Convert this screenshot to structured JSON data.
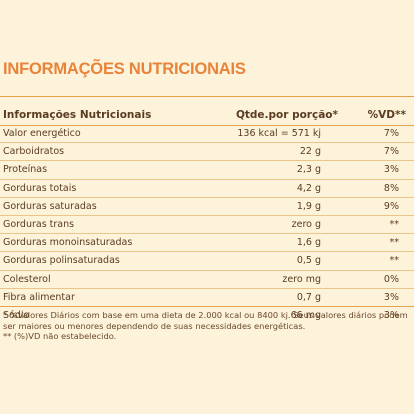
{
  "title": "INFORMAÇÕES NUTRICIONAIS",
  "table": {
    "headers": {
      "name": "Informações Nutricionais",
      "qty": "Qtde.por porção*",
      "vd": "%VD**"
    },
    "rows": [
      {
        "name": "Valor energético",
        "qty": "136 kcal = 571 kj",
        "vd": "7%"
      },
      {
        "name": "Carboidratos",
        "qty": "22 g",
        "vd": "7%"
      },
      {
        "name": "Proteínas",
        "qty": "2,3 g",
        "vd": "3%"
      },
      {
        "name": "Gorduras totais",
        "qty": "4,2 g",
        "vd": "8%"
      },
      {
        "name": "Gorduras saturadas",
        "qty": "1,9 g",
        "vd": "9%"
      },
      {
        "name": "Gorduras trans",
        "qty": "zero g",
        "vd": "**"
      },
      {
        "name": "Gorduras monoinsaturadas",
        "qty": "1,6 g",
        "vd": "**"
      },
      {
        "name": "Gorduras polinsaturadas",
        "qty": "0,5 g",
        "vd": "**"
      },
      {
        "name": "Colesterol",
        "qty": "zero mg",
        "vd": "0%"
      },
      {
        "name": "Fibra alimentar",
        "qty": "0,7 g",
        "vd": "3%"
      },
      {
        "name": "Sódio",
        "qty": "66 mg",
        "vd": "3%"
      }
    ]
  },
  "footnotes": {
    "line1": "* %Valores Diários com base em uma dieta de 2.000 kcal ou 8400 kj. Seus valores diários podem ser maiores ou menores dependendo de suas necessidades energéticas.",
    "line2": "** (%)VD não estabelecido."
  },
  "colors": {
    "background": "#fdf2da",
    "title": "#e8843a",
    "rule": "#e3a24e",
    "text": "#5a3c22"
  }
}
